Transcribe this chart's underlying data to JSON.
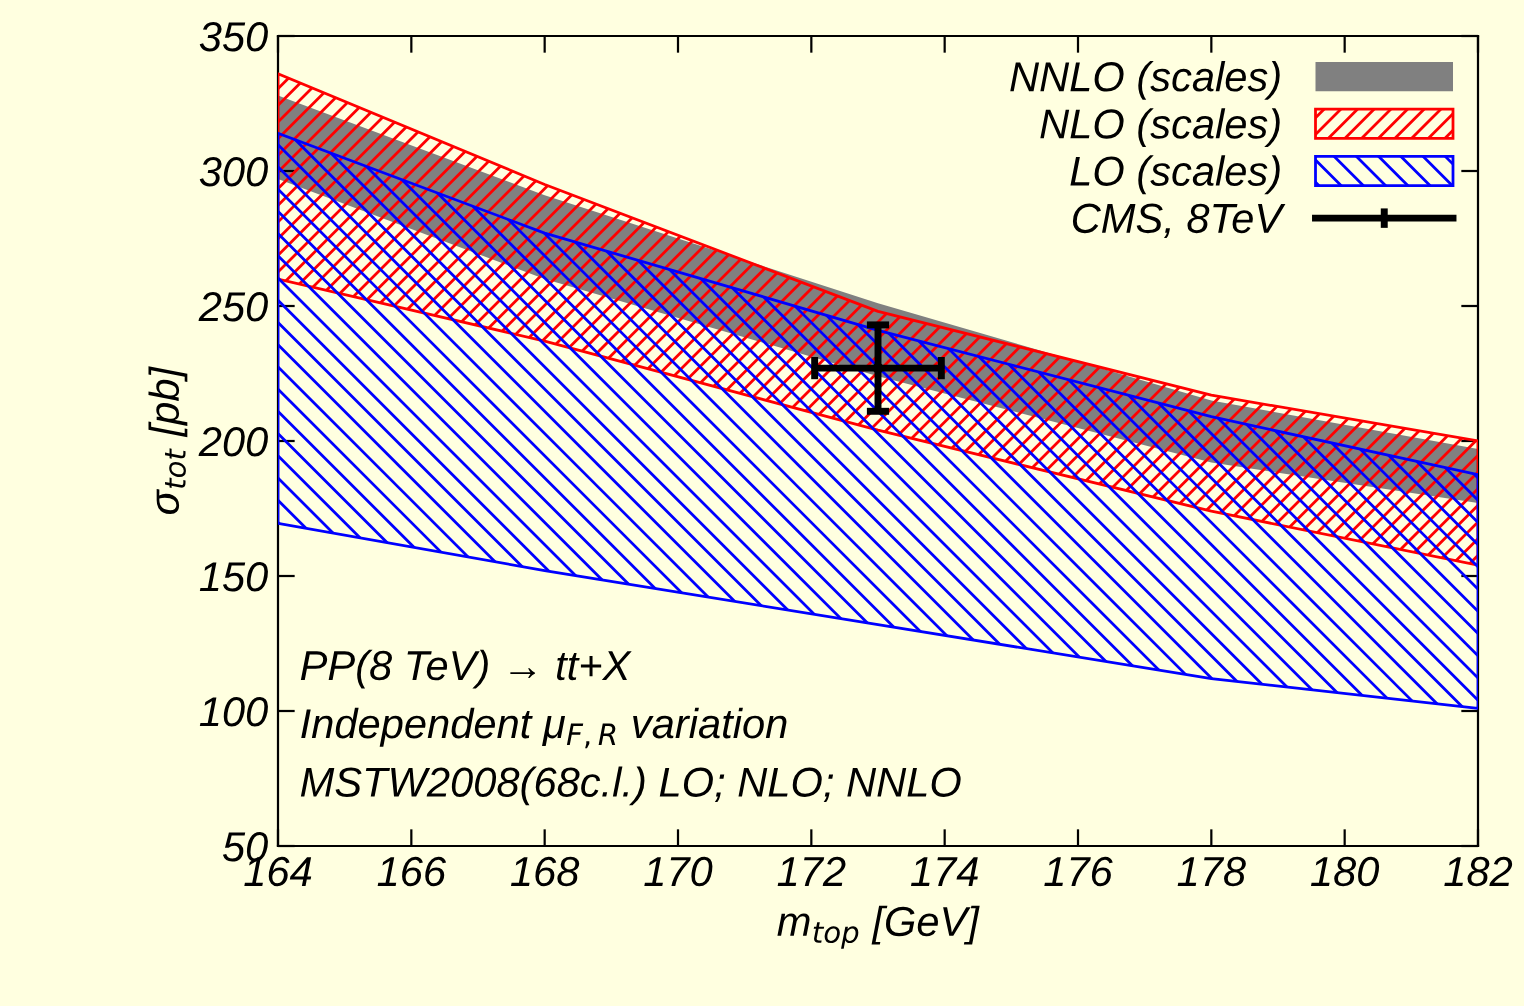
{
  "chart_data": {
    "type": "area",
    "xlabel": "m$_{top}$ [GeV]",
    "ylabel": "σ$_{tot}$ [pb]",
    "xlim": [
      164,
      182
    ],
    "ylim": [
      50,
      350
    ],
    "xticks": [
      164,
      166,
      168,
      170,
      172,
      174,
      176,
      178,
      180,
      182
    ],
    "yticks": [
      50,
      100,
      150,
      200,
      250,
      300,
      350
    ],
    "grid": false,
    "legend": "top right",
    "series": [
      {
        "name": "NNLO (scales)",
        "color": "#808080",
        "x": [
          164,
          168,
          173,
          178,
          182
        ],
        "values": [
          null,
          null,
          null,
          null,
          null
        ],
        "lower": [
          297,
          260,
          224,
          192,
          177
        ],
        "upper": [
          328,
          291,
          251,
          215,
          197
        ]
      },
      {
        "name": "NLO (scales)",
        "color": "#ff0000",
        "x": [
          164,
          168,
          173,
          178,
          182
        ],
        "values": [
          null,
          null,
          null,
          null,
          null
        ],
        "lower": [
          260,
          237,
          204,
          174,
          154
        ],
        "upper": [
          336,
          295,
          248,
          217,
          200
        ]
      },
      {
        "name": "LO (scales)",
        "color": "#0000ff",
        "x": [
          164,
          168,
          173,
          178,
          182
        ],
        "values": [
          null,
          null,
          null,
          null,
          null
        ],
        "lower": [
          169.5,
          152,
          132,
          112,
          101
        ],
        "upper": [
          314,
          277,
          241,
          209,
          187.5
        ]
      },
      {
        "name": "CMS, 8TeV",
        "type": "scatter",
        "color": "#000000",
        "x": [
          173
        ],
        "values": [
          227
        ],
        "errors": [
          16
        ],
        "xerrors": [
          0.95
        ],
        "marker": "circle"
      }
    ],
    "annotations": [
      "PP(8 TeV) → tt+X",
      "Independent μ$_{F,R}$ variation",
      "MSTW2008(68c.l.) LO; NLO; NNLO"
    ]
  }
}
